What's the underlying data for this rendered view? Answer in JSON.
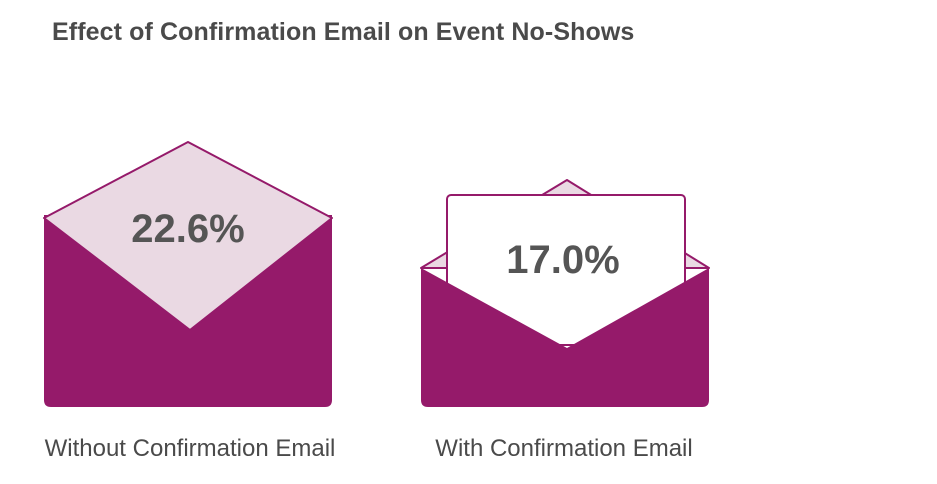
{
  "title": "Effect of Confirmation Email on Event No-Shows",
  "colors": {
    "envelope": "#951a6a",
    "flap": "#ead9e3",
    "letter": "#ffffff",
    "text": "#4a4a4a",
    "value_text": "#555555"
  },
  "chart_data": {
    "type": "bar",
    "title": "Effect of Confirmation Email on Event No-Shows",
    "categories": [
      "Without Confirmation Email",
      "With Confirmation Email"
    ],
    "values": [
      22.6,
      17.0
    ],
    "value_labels": [
      "22.6%",
      "17.0%"
    ],
    "icons": [
      "closed-envelope-icon",
      "open-envelope-letter-icon"
    ],
    "xlabel": "",
    "ylabel": "",
    "grid": false,
    "legend": "none"
  }
}
